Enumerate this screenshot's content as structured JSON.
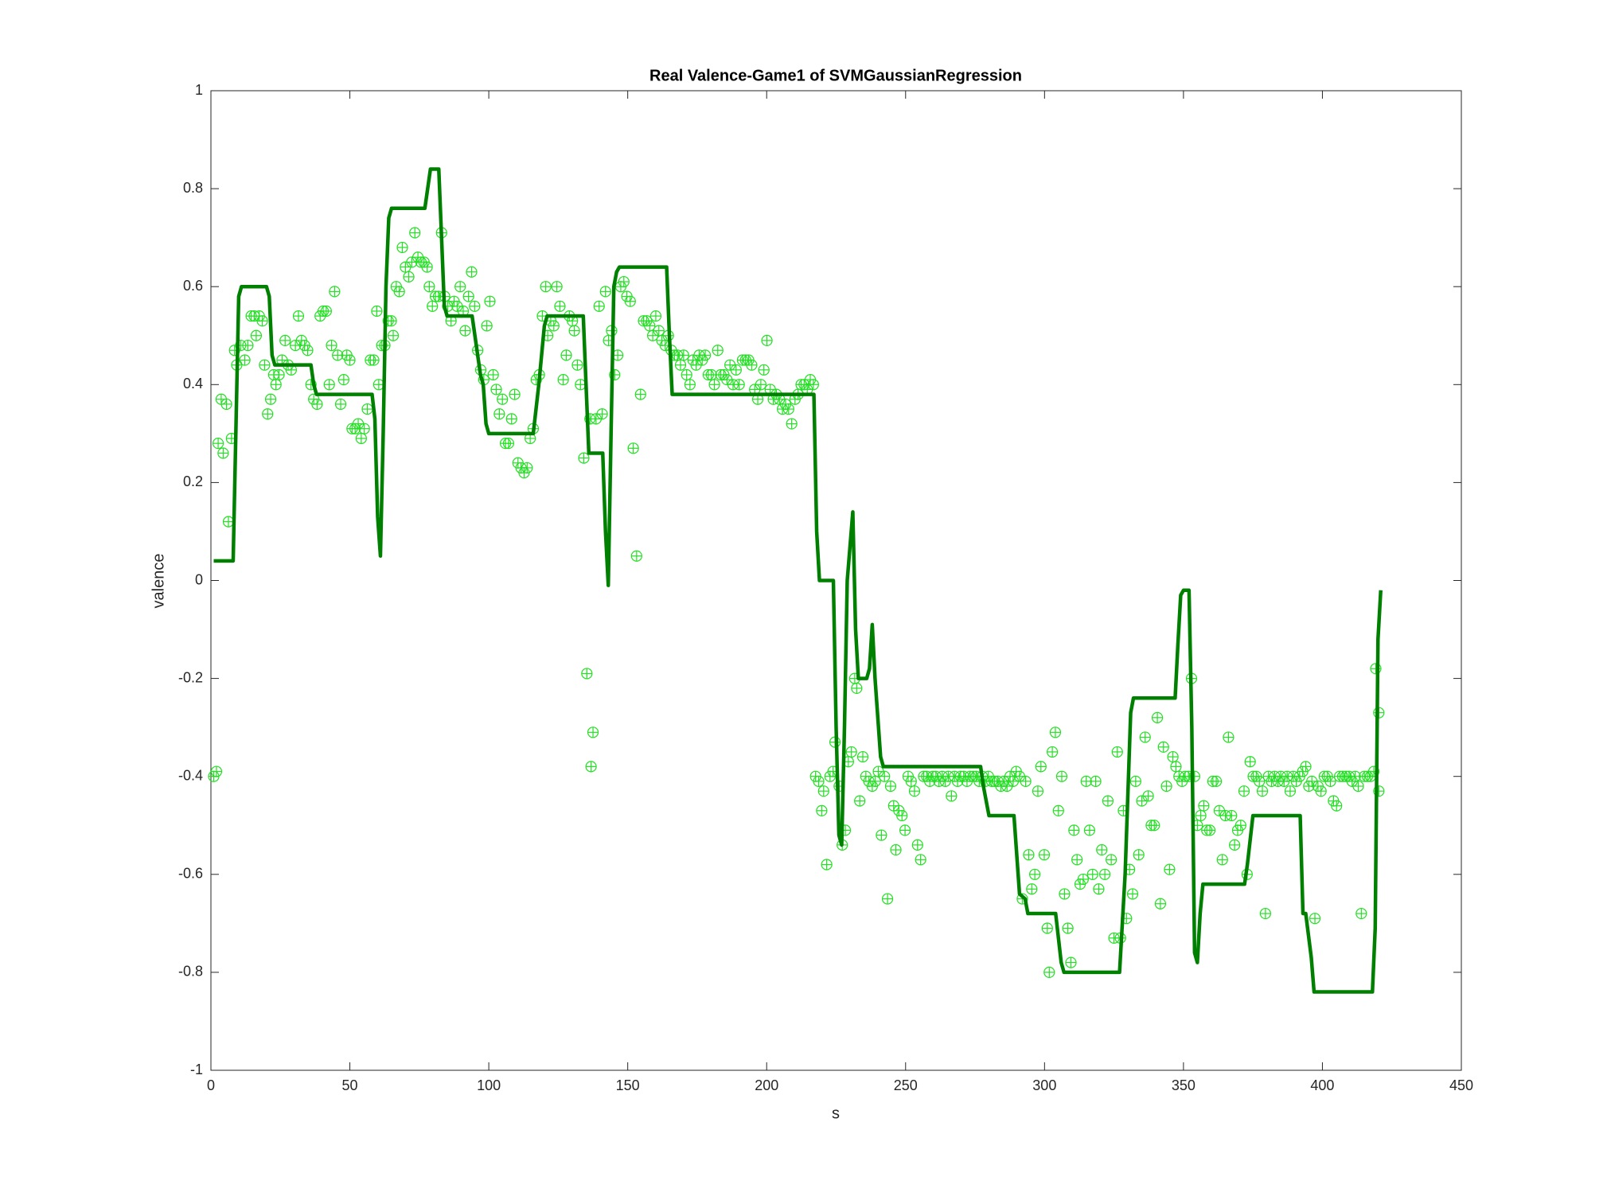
{
  "chart_data": {
    "type": "line",
    "title": "Real Valence-Game1 of SVMGaussianRegression",
    "x_label": "s",
    "y_label": "valence",
    "xlim": [
      0,
      450
    ],
    "xticks": [
      0,
      50,
      100,
      150,
      200,
      250,
      300,
      350,
      400,
      450
    ],
    "ylim": [
      -1,
      1
    ],
    "yticks": [
      -1,
      -0.8,
      -0.6,
      -0.4,
      -0.2,
      0,
      0.2,
      0.4,
      0.6,
      0.8,
      1
    ],
    "grid": false,
    "series": [
      {
        "type": "scatter",
        "color": "#22e022",
        "x": [
          1,
          2,
          2.6,
          3.7,
          4.4,
          5.6,
          6.3,
          7.4,
          8.5,
          9.3,
          10.7,
          12.2,
          13.3,
          14.5,
          15.6,
          16.3,
          17.4,
          18.5,
          19.3,
          20.4,
          21.5,
          22.6,
          23.4,
          24.5,
          25.6,
          26.7,
          27.8,
          28.9,
          30.4,
          31.5,
          32.6,
          33.7,
          34.8,
          36,
          37,
          38.2,
          39.3,
          40.4,
          41.5,
          42.6,
          43.4,
          44.5,
          45.6,
          46.7,
          47.8,
          48.9,
          50,
          50.8,
          51.9,
          53,
          54.1,
          55.2,
          56.3,
          57.4,
          58.6,
          59.7,
          60.4,
          61.5,
          62.6,
          63.8,
          64.9,
          65.6,
          66.7,
          67.8,
          68.9,
          70,
          71.2,
          72.3,
          73.4,
          74.5,
          75.6,
          76.7,
          77.8,
          78.6,
          79.7,
          80.8,
          81.9,
          83,
          84.1,
          85.2,
          86.4,
          87.5,
          88.6,
          89.7,
          90.8,
          91.5,
          92.7,
          93.8,
          94.9,
          96,
          97.1,
          98.2,
          99.3,
          100.4,
          101.6,
          102.7,
          103.8,
          104.9,
          106,
          107.1,
          108.2,
          109.3,
          110.5,
          111.6,
          112.7,
          113.8,
          114.9,
          116,
          117.1,
          118.2,
          119.3,
          120.5,
          121.2,
          122.3,
          123.4,
          124.5,
          125.6,
          126.8,
          127.9,
          129,
          130.1,
          130.8,
          131.9,
          133,
          134.2,
          135.3,
          136.4,
          136.8,
          137.5,
          138.6,
          139.7,
          140.8,
          142,
          143.1,
          144.2,
          145.3,
          146.4,
          147.5,
          148.6,
          149.7,
          150.9,
          152,
          153.2,
          154.6,
          155.7,
          156.8,
          157.9,
          159,
          160.1,
          161.2,
          162.3,
          163.5,
          164.6,
          165.7,
          166.8,
          167.9,
          169,
          170.1,
          171.2,
          172.4,
          173.5,
          174.6,
          175.7,
          176.8,
          177.9,
          179,
          180.1,
          181.2,
          182.4,
          183.5,
          184.6,
          185.7,
          186.8,
          187.9,
          189,
          190.1,
          191.3,
          192.4,
          193.5,
          194.6,
          195.7,
          196.8,
          197.9,
          199,
          200.1,
          201.3,
          202.4,
          203.5,
          204.6,
          205.7,
          206.8,
          207.9,
          209,
          210.2,
          211.3,
          212.4,
          213.5,
          214.6,
          215.7,
          216.8,
          217.6,
          218.7,
          219.8,
          220.5,
          221.6,
          222.8,
          223.9,
          224.6,
          226.1,
          227.2,
          228.3,
          229.4,
          230.5,
          231.7,
          232.4,
          233.5,
          234.6,
          235.7,
          236.8,
          238,
          239.1,
          240.2,
          241.3,
          242.4,
          243.5,
          244.6,
          245.7,
          246.5,
          247.6,
          248.7,
          249.8,
          250.9,
          252,
          253.2,
          254.3,
          255.4,
          256.5,
          257.6,
          258.7,
          259.8,
          260.9,
          262,
          263.2,
          264.3,
          265.4,
          266.5,
          267.6,
          268.7,
          269.8,
          270.9,
          272.1,
          273.2,
          274.3,
          275.4,
          276.5,
          277.6,
          278.7,
          279.8,
          281,
          282,
          283.2,
          284.3,
          285.4,
          286.5,
          287.6,
          288.7,
          289.8,
          291,
          292,
          293.2,
          294.3,
          295.4,
          296.5,
          297.6,
          298.7,
          299.9,
          301,
          301.7,
          302.8,
          303.9,
          305,
          306.2,
          307.2,
          308.4,
          309.5,
          310.6,
          311.7,
          312.8,
          313.9,
          315,
          316.2,
          317.3,
          318.4,
          319.5,
          320.6,
          321.7,
          322.8,
          324,
          325,
          326.2,
          327.3,
          328.4,
          329.5,
          330.6,
          331.7,
          332.8,
          333.9,
          335,
          336.2,
          337.3,
          338.4,
          339.5,
          340.6,
          341.7,
          342.8,
          343.9,
          345,
          346.2,
          347.3,
          348.4,
          349.5,
          350.6,
          351.8,
          352.9,
          354,
          355,
          356.2,
          357.3,
          358.4,
          359.5,
          360.6,
          361.8,
          362.9,
          364,
          365.1,
          366.2,
          367.3,
          368.4,
          369.5,
          370.6,
          371.8,
          372.9,
          374,
          375.1,
          376.2,
          377.3,
          378.4,
          379.5,
          380.6,
          381.7,
          382.8,
          384,
          385,
          386.2,
          387.3,
          388.4,
          389.5,
          390.6,
          391.8,
          392.9,
          394,
          395.1,
          396.2,
          397.3,
          398.4,
          399.5,
          400.7,
          401.8,
          402.9,
          404,
          405.1,
          406.2,
          407.3,
          408.5,
          409.6,
          410.7,
          411.8,
          412.9,
          414,
          415.1,
          416.2,
          417.3,
          418.5,
          419.2,
          420.3,
          420.3
        ],
        "values": [
          -0.4,
          -0.39,
          0.28,
          0.37,
          0.26,
          0.36,
          0.12,
          0.29,
          0.47,
          0.44,
          0.48,
          0.45,
          0.48,
          0.54,
          0.54,
          0.5,
          0.54,
          0.53,
          0.44,
          0.34,
          0.37,
          0.42,
          0.4,
          0.42,
          0.45,
          0.49,
          0.44,
          0.43,
          0.48,
          0.54,
          0.49,
          0.48,
          0.47,
          0.4,
          0.37,
          0.36,
          0.54,
          0.55,
          0.55,
          0.4,
          0.48,
          0.59,
          0.46,
          0.36,
          0.41,
          0.46,
          0.45,
          0.31,
          0.31,
          0.32,
          0.29,
          0.31,
          0.35,
          0.45,
          0.45,
          0.55,
          0.4,
          0.48,
          0.48,
          0.53,
          0.53,
          0.5,
          0.6,
          0.59,
          0.68,
          0.64,
          0.62,
          0.65,
          0.71,
          0.66,
          0.65,
          0.65,
          0.64,
          0.6,
          0.56,
          0.58,
          0.58,
          0.71,
          0.58,
          0.56,
          0.53,
          0.57,
          0.56,
          0.6,
          0.55,
          0.51,
          0.58,
          0.63,
          0.56,
          0.47,
          0.43,
          0.41,
          0.52,
          0.57,
          0.42,
          0.39,
          0.34,
          0.37,
          0.28,
          0.28,
          0.33,
          0.38,
          0.24,
          0.23,
          0.22,
          0.23,
          0.29,
          0.31,
          0.41,
          0.42,
          0.54,
          0.6,
          0.5,
          0.53,
          0.52,
          0.6,
          0.56,
          0.41,
          0.46,
          0.54,
          0.53,
          0.51,
          0.44,
          0.4,
          0.25,
          -0.19,
          0.33,
          -0.38,
          -0.31,
          0.33,
          0.56,
          0.34,
          0.59,
          0.49,
          0.51,
          0.42,
          0.46,
          0.6,
          0.61,
          0.58,
          0.57,
          0.27,
          0.05,
          0.38,
          0.53,
          0.53,
          0.52,
          0.5,
          0.54,
          0.51,
          0.49,
          0.48,
          0.5,
          0.47,
          0.46,
          0.46,
          0.44,
          0.46,
          0.42,
          0.4,
          0.45,
          0.44,
          0.46,
          0.45,
          0.46,
          0.42,
          0.42,
          0.4,
          0.47,
          0.42,
          0.42,
          0.41,
          0.44,
          0.4,
          0.43,
          0.4,
          0.45,
          0.45,
          0.45,
          0.44,
          0.39,
          0.37,
          0.4,
          0.43,
          0.49,
          0.39,
          0.37,
          0.38,
          0.37,
          0.35,
          0.36,
          0.35,
          0.32,
          0.37,
          0.38,
          0.4,
          0.4,
          0.39,
          0.41,
          0.4,
          -0.4,
          -0.41,
          -0.47,
          -0.43,
          -0.58,
          -0.4,
          -0.39,
          -0.33,
          -0.42,
          -0.54,
          -0.51,
          -0.37,
          -0.35,
          -0.2,
          -0.22,
          -0.45,
          -0.36,
          -0.4,
          -0.41,
          -0.42,
          -0.41,
          -0.39,
          -0.52,
          -0.4,
          -0.65,
          -0.42,
          -0.46,
          -0.55,
          -0.47,
          -0.48,
          -0.51,
          -0.4,
          -0.41,
          -0.43,
          -0.54,
          -0.57,
          -0.4,
          -0.4,
          -0.41,
          -0.4,
          -0.4,
          -0.41,
          -0.4,
          -0.41,
          -0.4,
          -0.44,
          -0.4,
          -0.41,
          -0.4,
          -0.4,
          -0.41,
          -0.4,
          -0.4,
          -0.4,
          -0.41,
          -0.4,
          -0.41,
          -0.4,
          -0.41,
          -0.41,
          -0.41,
          -0.42,
          -0.41,
          -0.42,
          -0.4,
          -0.41,
          -0.39,
          -0.4,
          -0.65,
          -0.41,
          -0.56,
          -0.63,
          -0.6,
          -0.43,
          -0.38,
          -0.56,
          -0.71,
          -0.8,
          -0.35,
          -0.31,
          -0.47,
          -0.4,
          -0.64,
          -0.71,
          -0.78,
          -0.51,
          -0.57,
          -0.62,
          -0.61,
          -0.41,
          -0.51,
          -0.6,
          -0.41,
          -0.63,
          -0.55,
          -0.6,
          -0.45,
          -0.57,
          -0.73,
          -0.35,
          -0.73,
          -0.47,
          -0.69,
          -0.59,
          -0.64,
          -0.41,
          -0.56,
          -0.45,
          -0.32,
          -0.44,
          -0.5,
          -0.5,
          -0.28,
          -0.66,
          -0.34,
          -0.42,
          -0.59,
          -0.36,
          -0.38,
          -0.4,
          -0.41,
          -0.4,
          -0.4,
          -0.2,
          -0.4,
          -0.5,
          -0.48,
          -0.46,
          -0.51,
          -0.51,
          -0.41,
          -0.41,
          -0.47,
          -0.57,
          -0.48,
          -0.32,
          -0.48,
          -0.54,
          -0.51,
          -0.5,
          -0.43,
          -0.6,
          -0.37,
          -0.4,
          -0.4,
          -0.41,
          -0.43,
          -0.68,
          -0.4,
          -0.41,
          -0.4,
          -0.41,
          -0.4,
          -0.41,
          -0.4,
          -0.43,
          -0.4,
          -0.41,
          -0.4,
          -0.39,
          -0.38,
          -0.42,
          -0.41,
          -0.69,
          -0.42,
          -0.43,
          -0.4,
          -0.4,
          -0.41,
          -0.45,
          -0.46,
          -0.4,
          -0.4,
          -0.4,
          -0.4,
          -0.41,
          -0.4,
          -0.42,
          -0.68,
          -0.4,
          -0.4,
          -0.4,
          -0.39,
          -0.18,
          -0.27,
          -0.43
        ]
      },
      {
        "type": "line",
        "color": "#008000",
        "x": [
          1,
          8,
          10,
          11,
          20,
          21,
          22,
          23,
          36,
          37,
          38,
          58,
          59,
          60,
          61,
          62,
          63,
          64,
          65,
          77,
          78,
          79,
          82,
          83,
          84,
          85,
          94,
          95,
          97,
          98,
          99,
          100,
          116,
          118,
          120,
          121,
          134,
          135,
          136,
          141,
          142,
          143,
          144,
          145,
          146,
          147,
          164,
          165,
          166,
          217,
          218,
          219,
          224,
          225,
          226,
          227,
          228,
          229,
          231,
          232,
          233,
          236,
          237,
          238,
          239,
          241,
          242,
          277,
          278,
          280,
          289,
          291,
          293,
          294,
          304,
          306,
          307,
          327,
          329,
          331,
          332,
          347,
          348,
          349,
          350,
          352,
          353,
          354,
          355,
          356,
          357,
          372,
          373,
          375,
          392,
          393,
          394,
          396,
          397,
          418,
          419,
          420,
          421
        ],
        "values": [
          0.04,
          0.04,
          0.58,
          0.6,
          0.6,
          0.58,
          0.46,
          0.44,
          0.44,
          0.4,
          0.38,
          0.38,
          0.33,
          0.13,
          0.05,
          0.3,
          0.6,
          0.74,
          0.76,
          0.76,
          0.8,
          0.84,
          0.84,
          0.7,
          0.56,
          0.54,
          0.54,
          0.5,
          0.42,
          0.4,
          0.32,
          0.3,
          0.3,
          0.4,
          0.52,
          0.54,
          0.54,
          0.4,
          0.26,
          0.26,
          0.1,
          -0.01,
          0.3,
          0.6,
          0.63,
          0.64,
          0.64,
          0.5,
          0.38,
          0.38,
          0.1,
          0,
          0,
          -0.3,
          -0.52,
          -0.54,
          -0.3,
          0,
          0.14,
          -0.1,
          -0.2,
          -0.2,
          -0.18,
          -0.09,
          -0.2,
          -0.36,
          -0.38,
          -0.38,
          -0.42,
          -0.48,
          -0.48,
          -0.64,
          -0.65,
          -0.68,
          -0.68,
          -0.78,
          -0.8,
          -0.8,
          -0.6,
          -0.27,
          -0.24,
          -0.24,
          -0.13,
          -0.03,
          -0.02,
          -0.02,
          -0.3,
          -0.76,
          -0.78,
          -0.68,
          -0.62,
          -0.62,
          -0.58,
          -0.48,
          -0.48,
          -0.68,
          -0.68,
          -0.77,
          -0.84,
          -0.84,
          -0.71,
          -0.12,
          -0.02
        ]
      }
    ]
  }
}
